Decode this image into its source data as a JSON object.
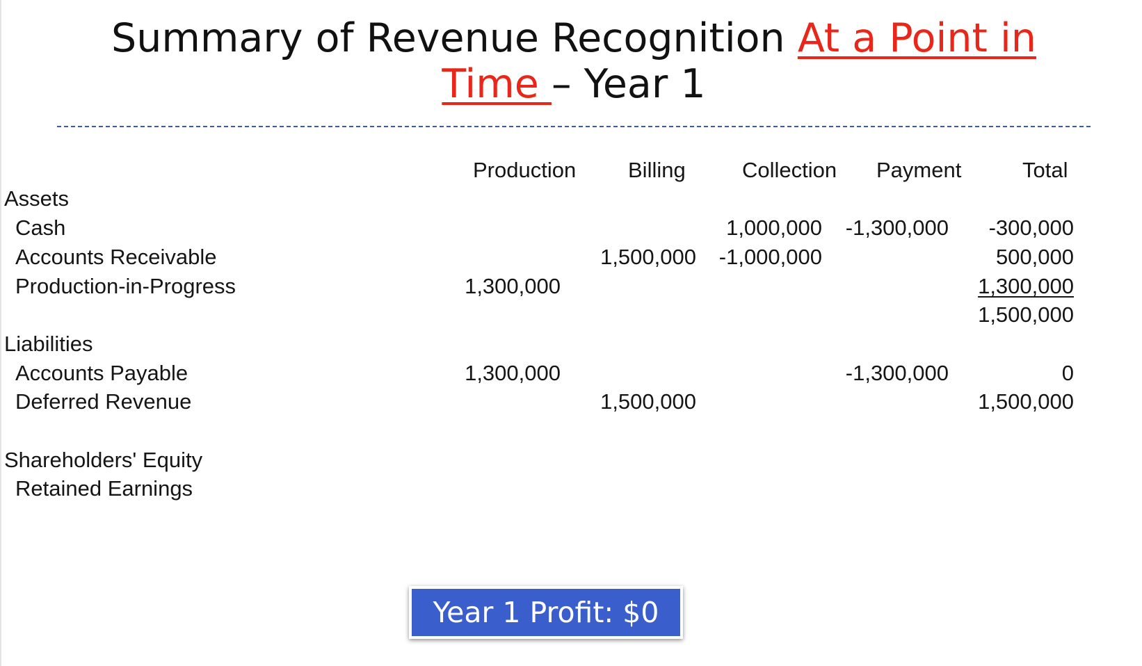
{
  "title": {
    "part1": "Summary of Revenue Recognition ",
    "highlight_line1": "At a Point in",
    "highlight_line2": "Time ",
    "part2": "– Year 1"
  },
  "columns": [
    "Production",
    "Billing",
    "Collection",
    "Payment",
    "Total"
  ],
  "sections": {
    "assets": "Assets",
    "liabilities": "Liabilities",
    "equity": "Shareholders' Equity"
  },
  "rows": {
    "cash": {
      "label": "Cash",
      "collection": "1,000,000",
      "payment": "-1,300,000",
      "total": "-300,000"
    },
    "ar": {
      "label": "Accounts Receivable",
      "billing": "1,500,000",
      "collection": "-1,000,000",
      "total": "500,000"
    },
    "pip": {
      "label": "Production-in-Progress",
      "production": "1,300,000",
      "total": "1,300,000"
    },
    "assets_total": "1,500,000",
    "ap": {
      "label": "Accounts Payable",
      "production": "1,300,000",
      "payment": "-1,300,000",
      "total": "0"
    },
    "dr": {
      "label": "Deferred Revenue",
      "billing": "1,500,000",
      "total": "1,500,000"
    },
    "re": {
      "label": "Retained Earnings"
    }
  },
  "profit_box": "Year 1 Profit: $0",
  "colors": {
    "highlight": "#e8271a",
    "divider": "#3a55c8",
    "profit_bg": "#3a5fcd"
  }
}
